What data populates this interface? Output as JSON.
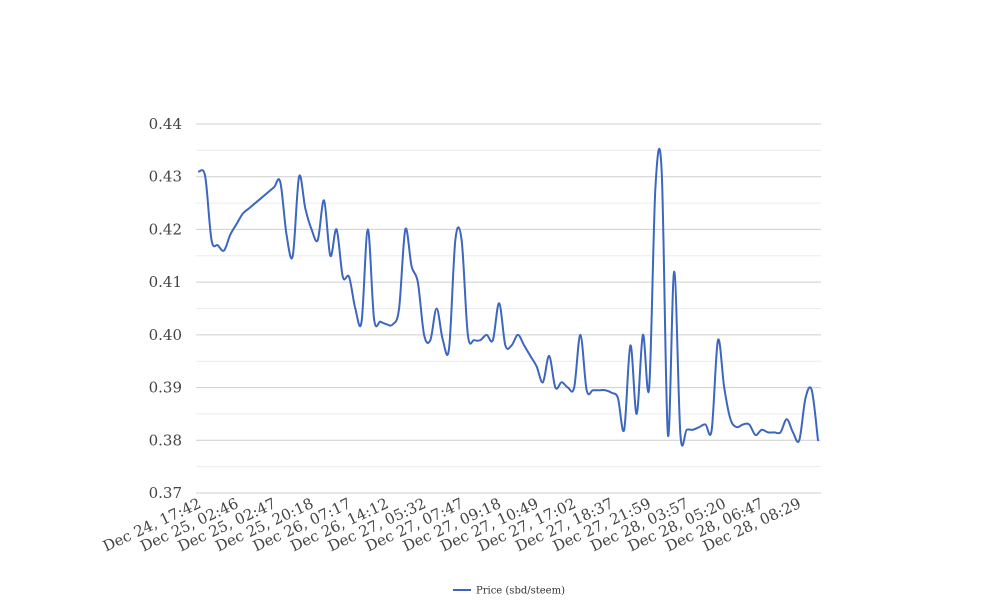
{
  "chart_data": {
    "type": "line",
    "title": "",
    "xlabel": "",
    "ylabel": "",
    "ylim": [
      0.37,
      0.44
    ],
    "y_ticks": [
      "0.37",
      "0.38",
      "0.39",
      "0.40",
      "0.41",
      "0.42",
      "0.43",
      "0.44"
    ],
    "x_ticks": [
      "Dec 24, 17:42",
      "Dec 25, 02:46",
      "Dec 25, 02:47",
      "Dec 25, 20:18",
      "Dec 26, 07:17",
      "Dec 26, 14:12",
      "Dec 27, 05:32",
      "Dec 27, 07:47",
      "Dec 27, 09:18",
      "Dec 27, 10:49",
      "Dec 27, 17:02",
      "Dec 27, 18:37",
      "Dec 27, 21:59",
      "Dec 28, 03:57",
      "Dec 28, 05:20",
      "Dec 28, 06:47",
      "Dec 28, 08:29"
    ],
    "grid": true,
    "legend_position": "bottom",
    "series": [
      {
        "name": "Price (sbd/steem)",
        "color": "#3c66c0",
        "values": [
          0.431,
          0.43,
          0.418,
          0.417,
          0.416,
          0.419,
          0.421,
          0.423,
          0.424,
          0.425,
          0.426,
          0.427,
          0.428,
          0.429,
          0.419,
          0.415,
          0.43,
          0.424,
          0.42,
          0.418,
          0.4255,
          0.415,
          0.42,
          0.411,
          0.411,
          0.405,
          0.4025,
          0.42,
          0.403,
          0.4025,
          0.402,
          0.402,
          0.405,
          0.42,
          0.413,
          0.41,
          0.4,
          0.399,
          0.405,
          0.399,
          0.3975,
          0.418,
          0.418,
          0.4,
          0.399,
          0.399,
          0.4,
          0.399,
          0.406,
          0.398,
          0.398,
          0.4,
          0.398,
          0.396,
          0.394,
          0.391,
          0.396,
          0.39,
          0.391,
          0.39,
          0.39,
          0.4,
          0.3895,
          0.3895,
          0.3895,
          0.3895,
          0.389,
          0.388,
          0.382,
          0.398,
          0.385,
          0.4,
          0.39,
          0.428,
          0.431,
          0.381,
          0.412,
          0.381,
          0.382,
          0.382,
          0.3825,
          0.383,
          0.382,
          0.399,
          0.39,
          0.384,
          0.3825,
          0.383,
          0.383,
          0.381,
          0.382,
          0.3815,
          0.3815,
          0.3815,
          0.384,
          0.3815,
          0.38,
          0.388,
          0.3895,
          0.38
        ]
      }
    ]
  }
}
